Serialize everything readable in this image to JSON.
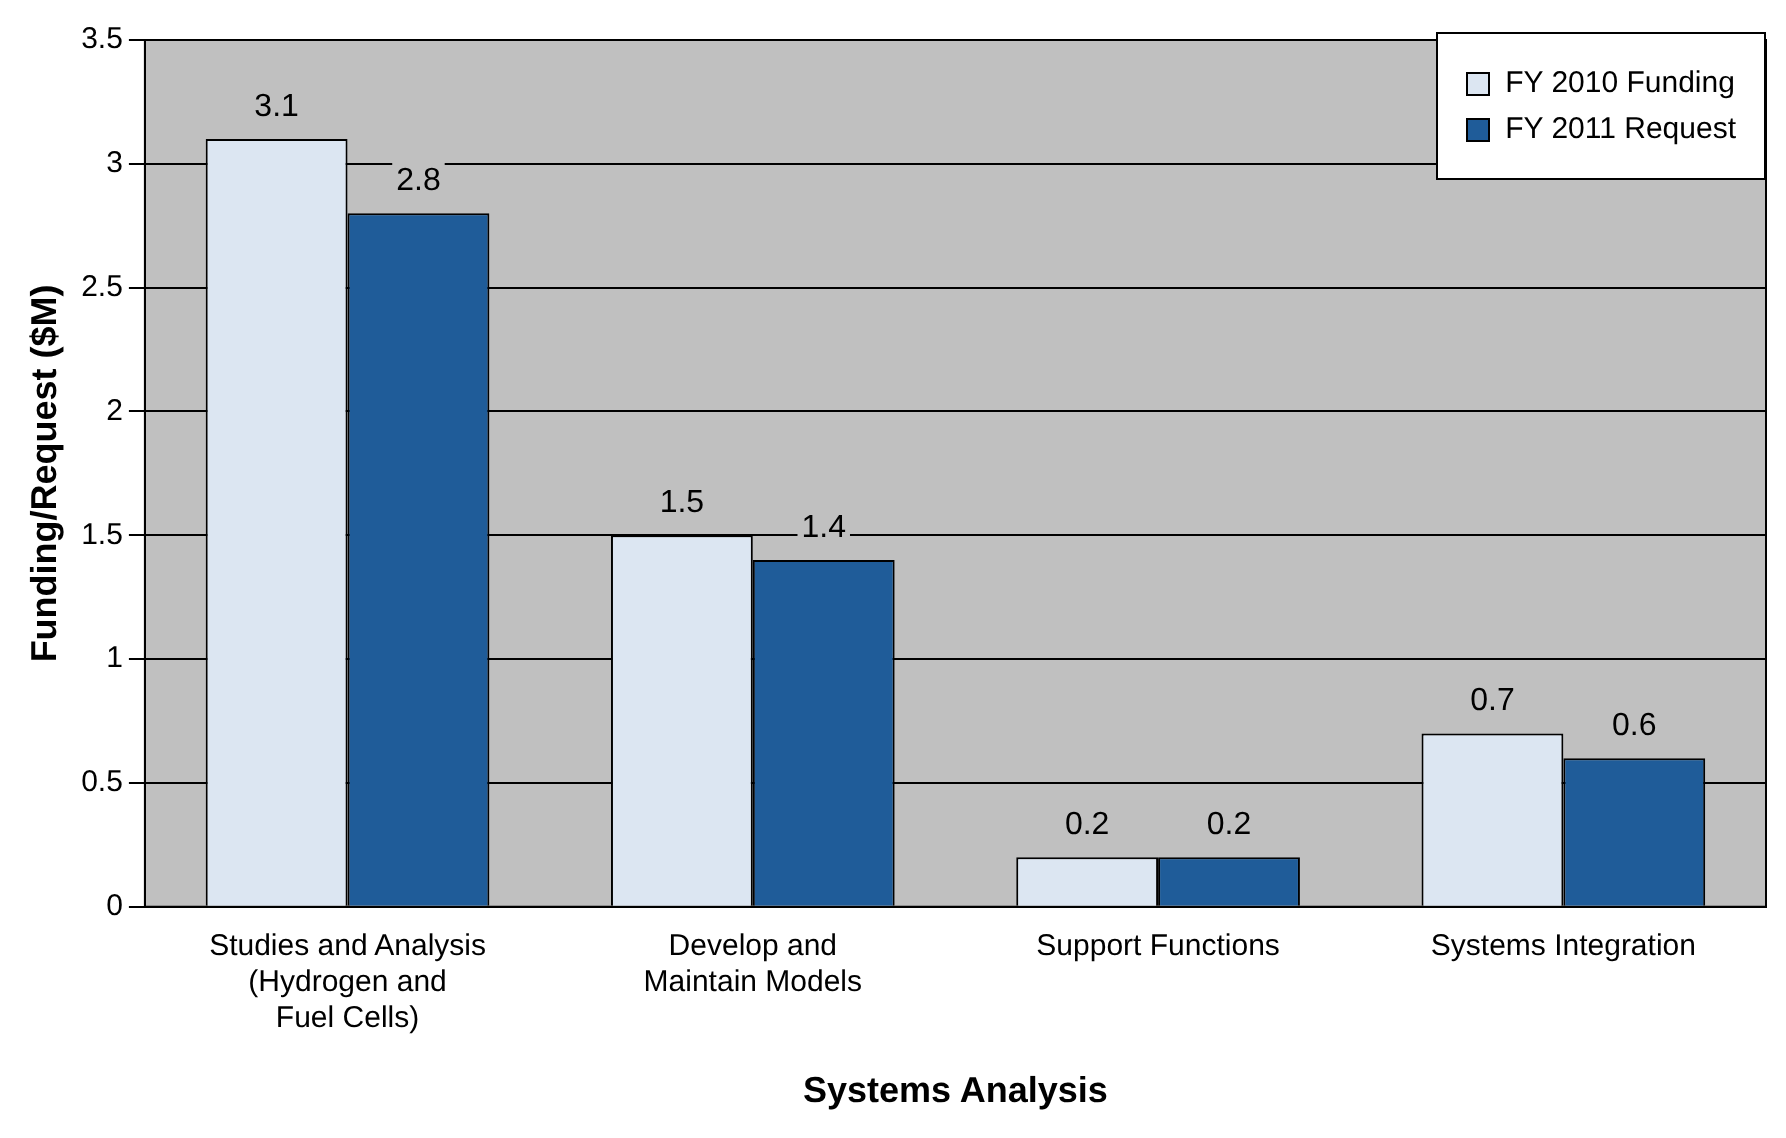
{
  "chart_data": {
    "type": "bar",
    "xlabel": "Systems Analysis",
    "ylabel": "Funding/Request ($M)",
    "categories": [
      "Studies and Analysis\n(Hydrogen and\nFuel Cells)",
      "Develop and\nMaintain Models",
      "Support Functions",
      "Systems Integration"
    ],
    "series": [
      {
        "name": "FY 2010 Funding",
        "color": "#dce6f2",
        "values": [
          3.1,
          1.5,
          0.2,
          0.7
        ]
      },
      {
        "name": "FY 2011 Request",
        "color": "#1f5c99",
        "values": [
          2.8,
          1.4,
          0.2,
          0.6
        ]
      }
    ],
    "ylim": [
      0,
      3.5
    ],
    "yticks": [
      0,
      0.5,
      1,
      1.5,
      2,
      2.5,
      3,
      3.5
    ],
    "grid": "y",
    "legend": "top right",
    "data_labels": true
  }
}
